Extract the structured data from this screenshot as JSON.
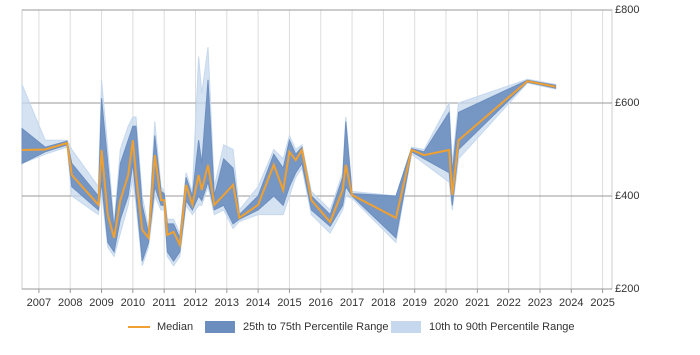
{
  "chart_data": {
    "type": "line",
    "x": [
      2006.46,
      2007.2,
      2007.9,
      2008.05,
      2008.9,
      2009.0,
      2009.2,
      2009.4,
      2009.6,
      2009.85,
      2010.0,
      2010.1,
      2010.3,
      2010.5,
      2010.7,
      2010.9,
      2011.0,
      2011.1,
      2011.3,
      2011.5,
      2011.7,
      2011.9,
      2012.1,
      2012.2,
      2012.4,
      2012.6,
      2012.9,
      2013.2,
      2013.4,
      2014.0,
      2014.5,
      2014.8,
      2015.0,
      2015.2,
      2015.4,
      2015.7,
      2016.3,
      2016.7,
      2016.8,
      2017.0,
      2018.4,
      2018.9,
      2019.3,
      2020.1,
      2020.2,
      2020.4,
      2022.6,
      2023.5
    ],
    "series": [
      {
        "name": "Median",
        "color": "#f0a030",
        "values": [
          499,
          500,
          514,
          445,
          381,
          499,
          359,
          310,
          391,
          445,
          520,
          445,
          327,
          310,
          488,
          391,
          391,
          316,
          323,
          295,
          424,
          381,
          445,
          413,
          467,
          381,
          402,
          424,
          353,
          381,
          467,
          413,
          495,
          477,
          499,
          391,
          344,
          413,
          467,
          402,
          353,
          499,
          488,
          499,
          402,
          520,
          647,
          635
        ]
      },
      {
        "name": "25th to 75th Percentile Range",
        "color": "#6c8ebf",
        "low": [
          470,
          495,
          510,
          420,
          370,
          430,
          300,
          280,
          350,
          400,
          470,
          400,
          260,
          300,
          420,
          380,
          380,
          280,
          260,
          280,
          390,
          370,
          400,
          390,
          430,
          370,
          380,
          340,
          350,
          370,
          400,
          380,
          420,
          450,
          470,
          370,
          335,
          380,
          420,
          400,
          310,
          495,
          480,
          450,
          380,
          500,
          645,
          632
        ],
        "high": [
          545,
          505,
          518,
          470,
          400,
          610,
          470,
          330,
          470,
          520,
          550,
          550,
          380,
          320,
          530,
          410,
          405,
          340,
          340,
          310,
          440,
          400,
          520,
          470,
          650,
          400,
          480,
          460,
          360,
          400,
          490,
          460,
          520,
          490,
          505,
          400,
          360,
          440,
          560,
          405,
          400,
          502,
          495,
          580,
          450,
          580,
          649,
          638
        ]
      },
      {
        "name": "10th to 90th Percentile Range",
        "color": "#c5d8ee",
        "low": [
          470,
          490,
          505,
          400,
          360,
          410,
          290,
          270,
          320,
          380,
          440,
          380,
          250,
          290,
          400,
          370,
          370,
          270,
          250,
          270,
          380,
          360,
          380,
          380,
          420,
          360,
          370,
          330,
          345,
          360,
          360,
          360,
          400,
          440,
          460,
          360,
          320,
          370,
          400,
          395,
          300,
          490,
          470,
          430,
          370,
          480,
          643,
          630
        ],
        "high": [
          640,
          520,
          520,
          500,
          420,
          650,
          500,
          340,
          500,
          550,
          570,
          570,
          400,
          330,
          560,
          420,
          410,
          350,
          350,
          320,
          450,
          410,
          700,
          620,
          720,
          420,
          510,
          500,
          370,
          420,
          500,
          480,
          530,
          500,
          510,
          410,
          370,
          450,
          570,
          410,
          400,
          505,
          500,
          600,
          470,
          600,
          651,
          640
        ]
      }
    ],
    "xlim": [
      2006.46,
      2025.3
    ],
    "xticks": [
      2007,
      2008,
      2009,
      2010,
      2011,
      2012,
      2013,
      2014,
      2015,
      2016,
      2017,
      2018,
      2019,
      2020,
      2021,
      2022,
      2023,
      2024,
      2025
    ],
    "ylim": [
      200,
      800
    ],
    "yticks": [
      {
        "value": 200,
        "label": "£200"
      },
      {
        "value": 400,
        "label": "£400"
      },
      {
        "value": 600,
        "label": "£600"
      },
      {
        "value": 800,
        "label": "£800"
      }
    ],
    "grid": true,
    "legend": "bottom"
  }
}
